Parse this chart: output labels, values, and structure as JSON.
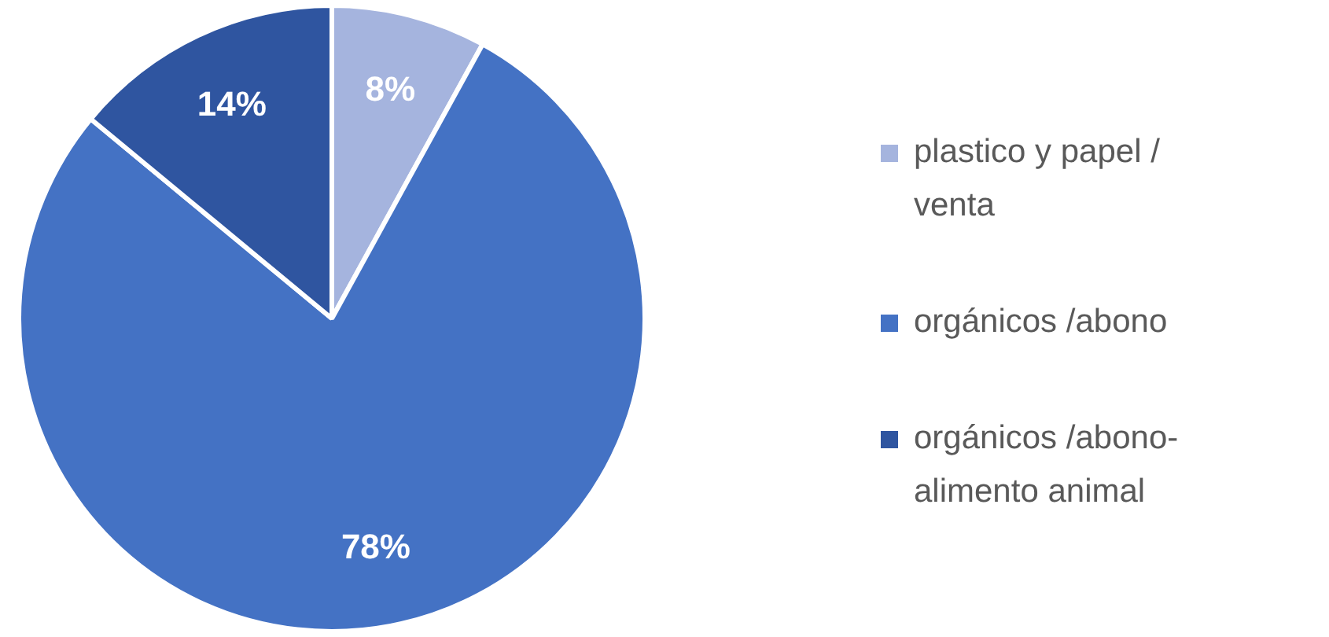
{
  "chart_data": {
    "type": "pie",
    "categories": [
      "plastico y papel / venta",
      "orgánicos /abono",
      "orgánicos /abono-alimento animal"
    ],
    "values": [
      8,
      78,
      14
    ],
    "colors": [
      "#a5b4de",
      "#4472c4",
      "#2f55a0"
    ],
    "value_labels": [
      "8%",
      "78%",
      "14%"
    ],
    "legend": "right"
  }
}
